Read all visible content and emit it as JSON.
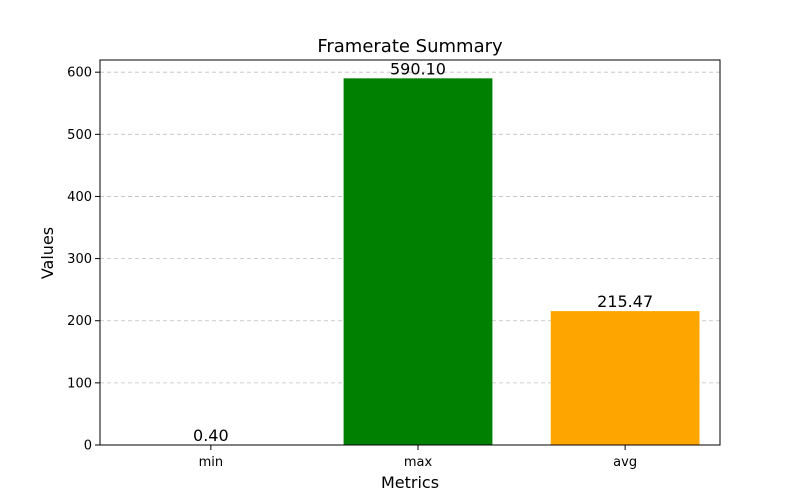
{
  "chart_data": {
    "type": "bar",
    "title": "Framerate Summary",
    "xlabel": "Metrics",
    "ylabel": "Values",
    "categories": [
      "min",
      "max",
      "avg"
    ],
    "values": [
      0.4,
      590.1,
      215.47
    ],
    "value_labels": [
      "0.40",
      "590.10",
      "215.47"
    ],
    "colors": [
      "#1f77b4",
      "#008000",
      "#ffa500"
    ],
    "ylim": [
      0,
      619.6
    ],
    "yticks": [
      0,
      100,
      200,
      300,
      400,
      500,
      600
    ],
    "grid": "y-dashed",
    "legend": "none"
  }
}
